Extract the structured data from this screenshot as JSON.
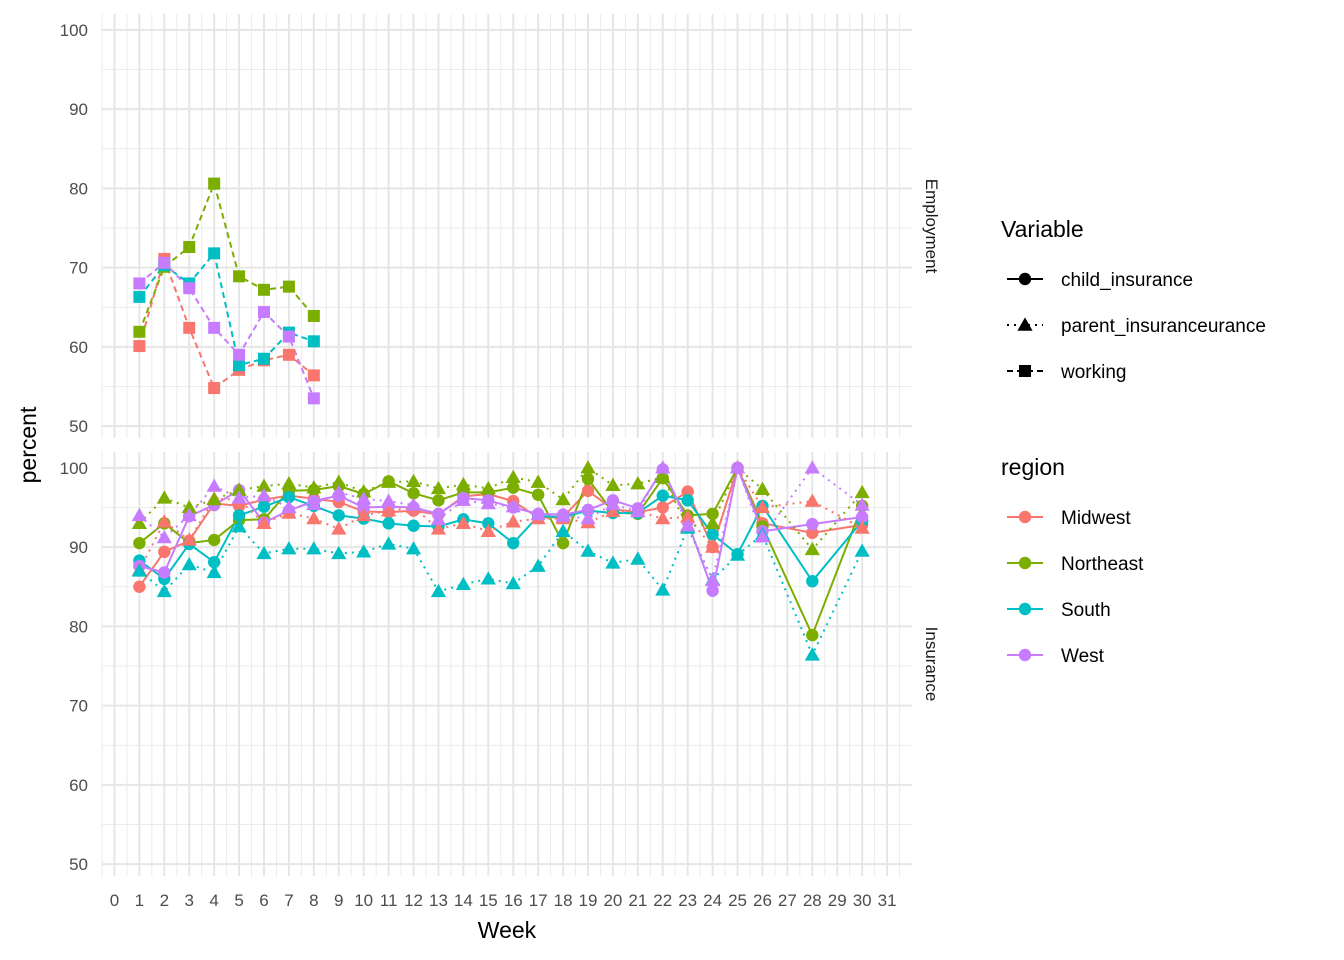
{
  "chart_data": {
    "type": "line",
    "xlabel": "Week",
    "ylabel": "percent",
    "x_ticks": [
      0,
      1,
      2,
      3,
      4,
      5,
      6,
      7,
      8,
      9,
      10,
      11,
      12,
      13,
      14,
      15,
      16,
      17,
      18,
      19,
      20,
      21,
      22,
      23,
      24,
      25,
      26,
      27,
      28,
      29,
      30,
      31
    ],
    "xlim": [
      -0.5,
      32
    ],
    "ylim": [
      48.5,
      102
    ],
    "y_ticks": [
      50,
      60,
      70,
      80,
      90,
      100
    ],
    "grid": true,
    "legend_placement": "right",
    "facets": [
      {
        "label": "Employment",
        "series": [
          {
            "variable": "working",
            "region": "Midwest",
            "x": [
              1,
              2,
              3,
              4,
              5,
              6,
              7,
              8
            ],
            "y": [
              60.1,
              71.1,
              62.4,
              54.8,
              57.1,
              58.3,
              59.0,
              56.4
            ]
          },
          {
            "variable": "working",
            "region": "Northeast",
            "x": [
              1,
              2,
              3,
              4,
              5,
              6,
              7,
              8
            ],
            "y": [
              61.9,
              70.1,
              72.6,
              80.6,
              68.9,
              67.2,
              67.6,
              63.9
            ]
          },
          {
            "variable": "working",
            "region": "South",
            "x": [
              1,
              2,
              3,
              4,
              5,
              6,
              7,
              8
            ],
            "y": [
              66.3,
              70.3,
              68.0,
              71.8,
              57.7,
              58.5,
              61.8,
              60.7
            ]
          },
          {
            "variable": "working",
            "region": "West",
            "x": [
              1,
              2,
              3,
              4,
              5,
              6,
              7,
              8
            ],
            "y": [
              68.0,
              70.6,
              67.4,
              62.4,
              59.0,
              64.4,
              61.3,
              53.5
            ]
          }
        ]
      },
      {
        "label": "Insurance",
        "series": [
          {
            "variable": "child_insurance",
            "region": "Midwest",
            "x": [
              1,
              2,
              3,
              4,
              5,
              6,
              7,
              8,
              9,
              10,
              11,
              12,
              13,
              14,
              15,
              16,
              17,
              18,
              19,
              20,
              21,
              22,
              23,
              24,
              25,
              26,
              27,
              28,
              29,
              30
            ],
            "y": [
              85.0,
              89.4,
              90.8,
              95.5,
              95.2,
              96.0,
              96.5,
              96.1,
              95.7,
              94.5,
              94.4,
              94.6,
              94.1,
              96.4,
              96.7,
              95.8,
              93.7,
              93.8,
              97.1,
              94.8,
              94.4,
              95.0,
              97.0,
              90.0,
              100.0,
              93.0,
              null,
              91.8,
              null,
              92.8
            ]
          },
          {
            "variable": "child_insurance",
            "region": "Northeast",
            "x": [
              1,
              2,
              3,
              4,
              5,
              6,
              7,
              8,
              9,
              10,
              11,
              12,
              13,
              14,
              15,
              16,
              17,
              18,
              19,
              20,
              21,
              22,
              23,
              24,
              25,
              26,
              27,
              28,
              29,
              30
            ],
            "y": [
              90.5,
              93.0,
              90.5,
              90.9,
              93.4,
              93.5,
              97.1,
              97.2,
              97.7,
              96.7,
              98.3,
              96.8,
              95.9,
              96.9,
              96.9,
              97.5,
              96.6,
              90.5,
              98.6,
              94.4,
              94.2,
              98.7,
              94.0,
              94.2,
              100.0,
              92.6,
              null,
              78.9,
              null,
              95.2
            ]
          },
          {
            "variable": "child_insurance",
            "region": "South",
            "x": [
              1,
              2,
              3,
              4,
              5,
              6,
              7,
              8,
              9,
              10,
              11,
              12,
              13,
              14,
              15,
              16,
              17,
              18,
              19,
              20,
              21,
              22,
              23,
              24,
              25,
              26,
              27,
              28,
              29,
              30
            ],
            "y": [
              88.3,
              86.0,
              90.4,
              88.1,
              94.0,
              95.1,
              96.3,
              95.2,
              94.0,
              93.6,
              93.0,
              92.7,
              92.6,
              93.5,
              93.0,
              90.5,
              93.9,
              93.8,
              94.6,
              94.3,
              94.3,
              96.5,
              95.9,
              91.6,
              89.1,
              95.2,
              null,
              85.7,
              null,
              93.3
            ]
          },
          {
            "variable": "child_insurance",
            "region": "West",
            "x": [
              1,
              2,
              3,
              4,
              5,
              6,
              7,
              8,
              9,
              10,
              11,
              12,
              13,
              14,
              15,
              16,
              17,
              18,
              19,
              20,
              21,
              22,
              23,
              24,
              25,
              26,
              27,
              28,
              29,
              30
            ],
            "y": [
              87.6,
              86.8,
              93.9,
              95.3,
              97.2,
              93.1,
              94.6,
              95.8,
              96.5,
              95.0,
              95.1,
              95.0,
              94.2,
              96.2,
              95.9,
              95.0,
              94.2,
              94.1,
              94.7,
              95.9,
              94.9,
              99.8,
              93.2,
              84.5,
              100.0,
              92.0,
              null,
              92.9,
              null,
              93.8
            ]
          },
          {
            "variable": "parent_insuranceurance",
            "region": "Midwest",
            "x": [
              1,
              2,
              3,
              4,
              5,
              6,
              7,
              8,
              9,
              10,
              11,
              12,
              13,
              14,
              15,
              16,
              17,
              18,
              19,
              20,
              21,
              22,
              23,
              24,
              25,
              26,
              27,
              28,
              29,
              30
            ],
            "y": [
              87.1,
              93.2,
              90.9,
              96.1,
              96.0,
              93.0,
              94.3,
              93.6,
              92.3,
              94.0,
              94.6,
              95.0,
              92.3,
              93.0,
              92.0,
              93.2,
              93.6,
              93.6,
              93.1,
              94.5,
              94.5,
              93.6,
              93.8,
              90.0,
              100.0,
              95.0,
              null,
              95.8,
              null,
              92.4
            ]
          },
          {
            "variable": "parent_insuranceurance",
            "region": "Northeast",
            "x": [
              1,
              2,
              3,
              4,
              5,
              6,
              7,
              8,
              9,
              10,
              11,
              12,
              13,
              14,
              15,
              16,
              17,
              18,
              19,
              20,
              21,
              22,
              23,
              24,
              25,
              26,
              27,
              28,
              29,
              30
            ],
            "y": [
              93.0,
              96.2,
              95.0,
              96.0,
              97.2,
              97.7,
              98.0,
              97.5,
              98.2,
              97.0,
              98.2,
              98.3,
              97.4,
              97.9,
              97.4,
              98.8,
              98.2,
              96.0,
              100.0,
              97.8,
              98.0,
              98.8,
              92.6,
              93.0,
              100.0,
              97.3,
              null,
              89.7,
              null,
              96.9
            ]
          },
          {
            "variable": "parent_insuranceurance",
            "region": "South",
            "x": [
              1,
              2,
              3,
              4,
              5,
              6,
              7,
              8,
              9,
              10,
              11,
              12,
              13,
              14,
              15,
              16,
              17,
              18,
              19,
              20,
              21,
              22,
              23,
              24,
              25,
              26,
              27,
              28,
              29,
              30
            ],
            "y": [
              87.0,
              84.4,
              87.8,
              86.8,
              92.6,
              89.2,
              89.8,
              89.8,
              89.2,
              89.4,
              90.4,
              89.8,
              84.4,
              85.3,
              86.0,
              85.4,
              87.6,
              92.0,
              89.5,
              88.0,
              88.5,
              84.6,
              92.4,
              85.9,
              89.0,
              91.6,
              null,
              76.4,
              null,
              89.5
            ]
          },
          {
            "variable": "parent_insuranceurance",
            "region": "West",
            "x": [
              1,
              2,
              3,
              4,
              5,
              6,
              7,
              8,
              9,
              10,
              11,
              12,
              13,
              14,
              15,
              16,
              17,
              18,
              19,
              20,
              21,
              22,
              23,
              24,
              25,
              26,
              27,
              28,
              29,
              30
            ],
            "y": [
              94.0,
              91.2,
              94.0,
              97.7,
              96.2,
              96.5,
              95.0,
              95.4,
              96.9,
              96.1,
              95.8,
              95.3,
              93.5,
              95.9,
              95.5,
              95.1,
              94.1,
              93.9,
              93.6,
              95.4,
              94.5,
              100.0,
              92.7,
              85.8,
              100.0,
              91.3,
              null,
              100.0,
              null,
              95.3
            ]
          }
        ]
      }
    ],
    "legends": {
      "variable": {
        "title": "Variable",
        "items": [
          {
            "label": "child_insurance",
            "shape": "circle",
            "linetype": "solid"
          },
          {
            "label": "parent_insuranceurance",
            "shape": "triangle",
            "linetype": "dotted"
          },
          {
            "label": "working",
            "shape": "square",
            "linetype": "dashed"
          }
        ]
      },
      "region": {
        "title": "region",
        "items": [
          {
            "label": "Midwest",
            "color": "#F8766D"
          },
          {
            "label": "Northeast",
            "color": "#7CAE00"
          },
          {
            "label": "South",
            "color": "#00BFC4"
          },
          {
            "label": "West",
            "color": "#C77CFF"
          }
        ]
      }
    },
    "colors": {
      "Midwest": "#F8766D",
      "Northeast": "#7CAE00",
      "South": "#00BFC4",
      "West": "#C77CFF"
    }
  }
}
